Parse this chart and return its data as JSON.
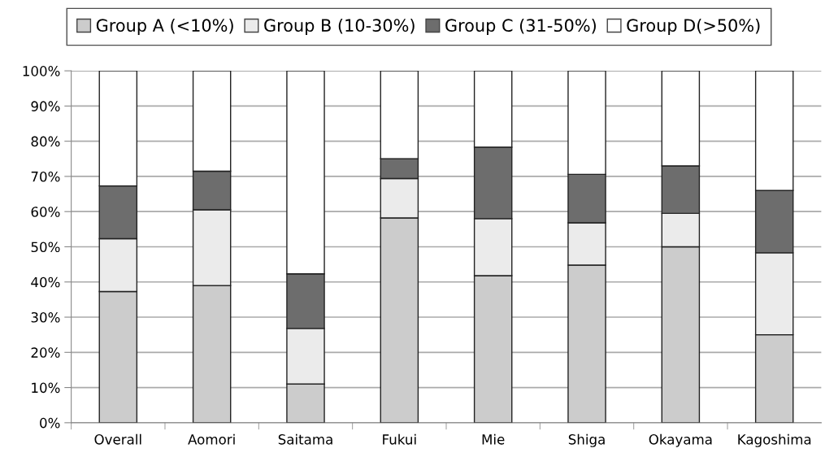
{
  "chart_data": {
    "type": "bar",
    "stacked": true,
    "categories": [
      "Overall",
      "Aomori",
      "Saitama",
      "Fukui",
      "Mie",
      "Shiga",
      "Okayama",
      "Kagoshima"
    ],
    "series": [
      {
        "name": "Group A (<10%)",
        "color": "#cccccc",
        "values": [
          37.3,
          39,
          11,
          58.2,
          41.8,
          44.8,
          50,
          25
        ]
      },
      {
        "name": "Group B (10-30%)",
        "color": "#ebebeb",
        "values": [
          15,
          21.5,
          15.8,
          11.2,
          16.2,
          12,
          9.5,
          23.3
        ]
      },
      {
        "name": "Group C (31-50%)",
        "color": "#6d6d6d",
        "values": [
          15,
          11,
          15.5,
          5.6,
          20.3,
          13.8,
          13.5,
          17.7
        ]
      },
      {
        "name": "Group D(>50%)",
        "color": "#ffffff",
        "values": [
          32.7,
          28.5,
          57.7,
          25,
          21.7,
          29.4,
          27,
          34
        ]
      }
    ],
    "ylim": [
      0,
      100
    ],
    "yticks": [
      {
        "value": 0,
        "label": "0%"
      },
      {
        "value": 10,
        "label": "10%"
      },
      {
        "value": 20,
        "label": "20%"
      },
      {
        "value": 30,
        "label": "30%"
      },
      {
        "value": 40,
        "label": "40%"
      },
      {
        "value": 50,
        "label": "50%"
      },
      {
        "value": 60,
        "label": "60%"
      },
      {
        "value": 70,
        "label": "70%"
      },
      {
        "value": 80,
        "label": "80%"
      },
      {
        "value": 90,
        "label": "90%"
      },
      {
        "value": 100,
        "label": "100%"
      }
    ],
    "grid": "y",
    "legend": "top"
  }
}
